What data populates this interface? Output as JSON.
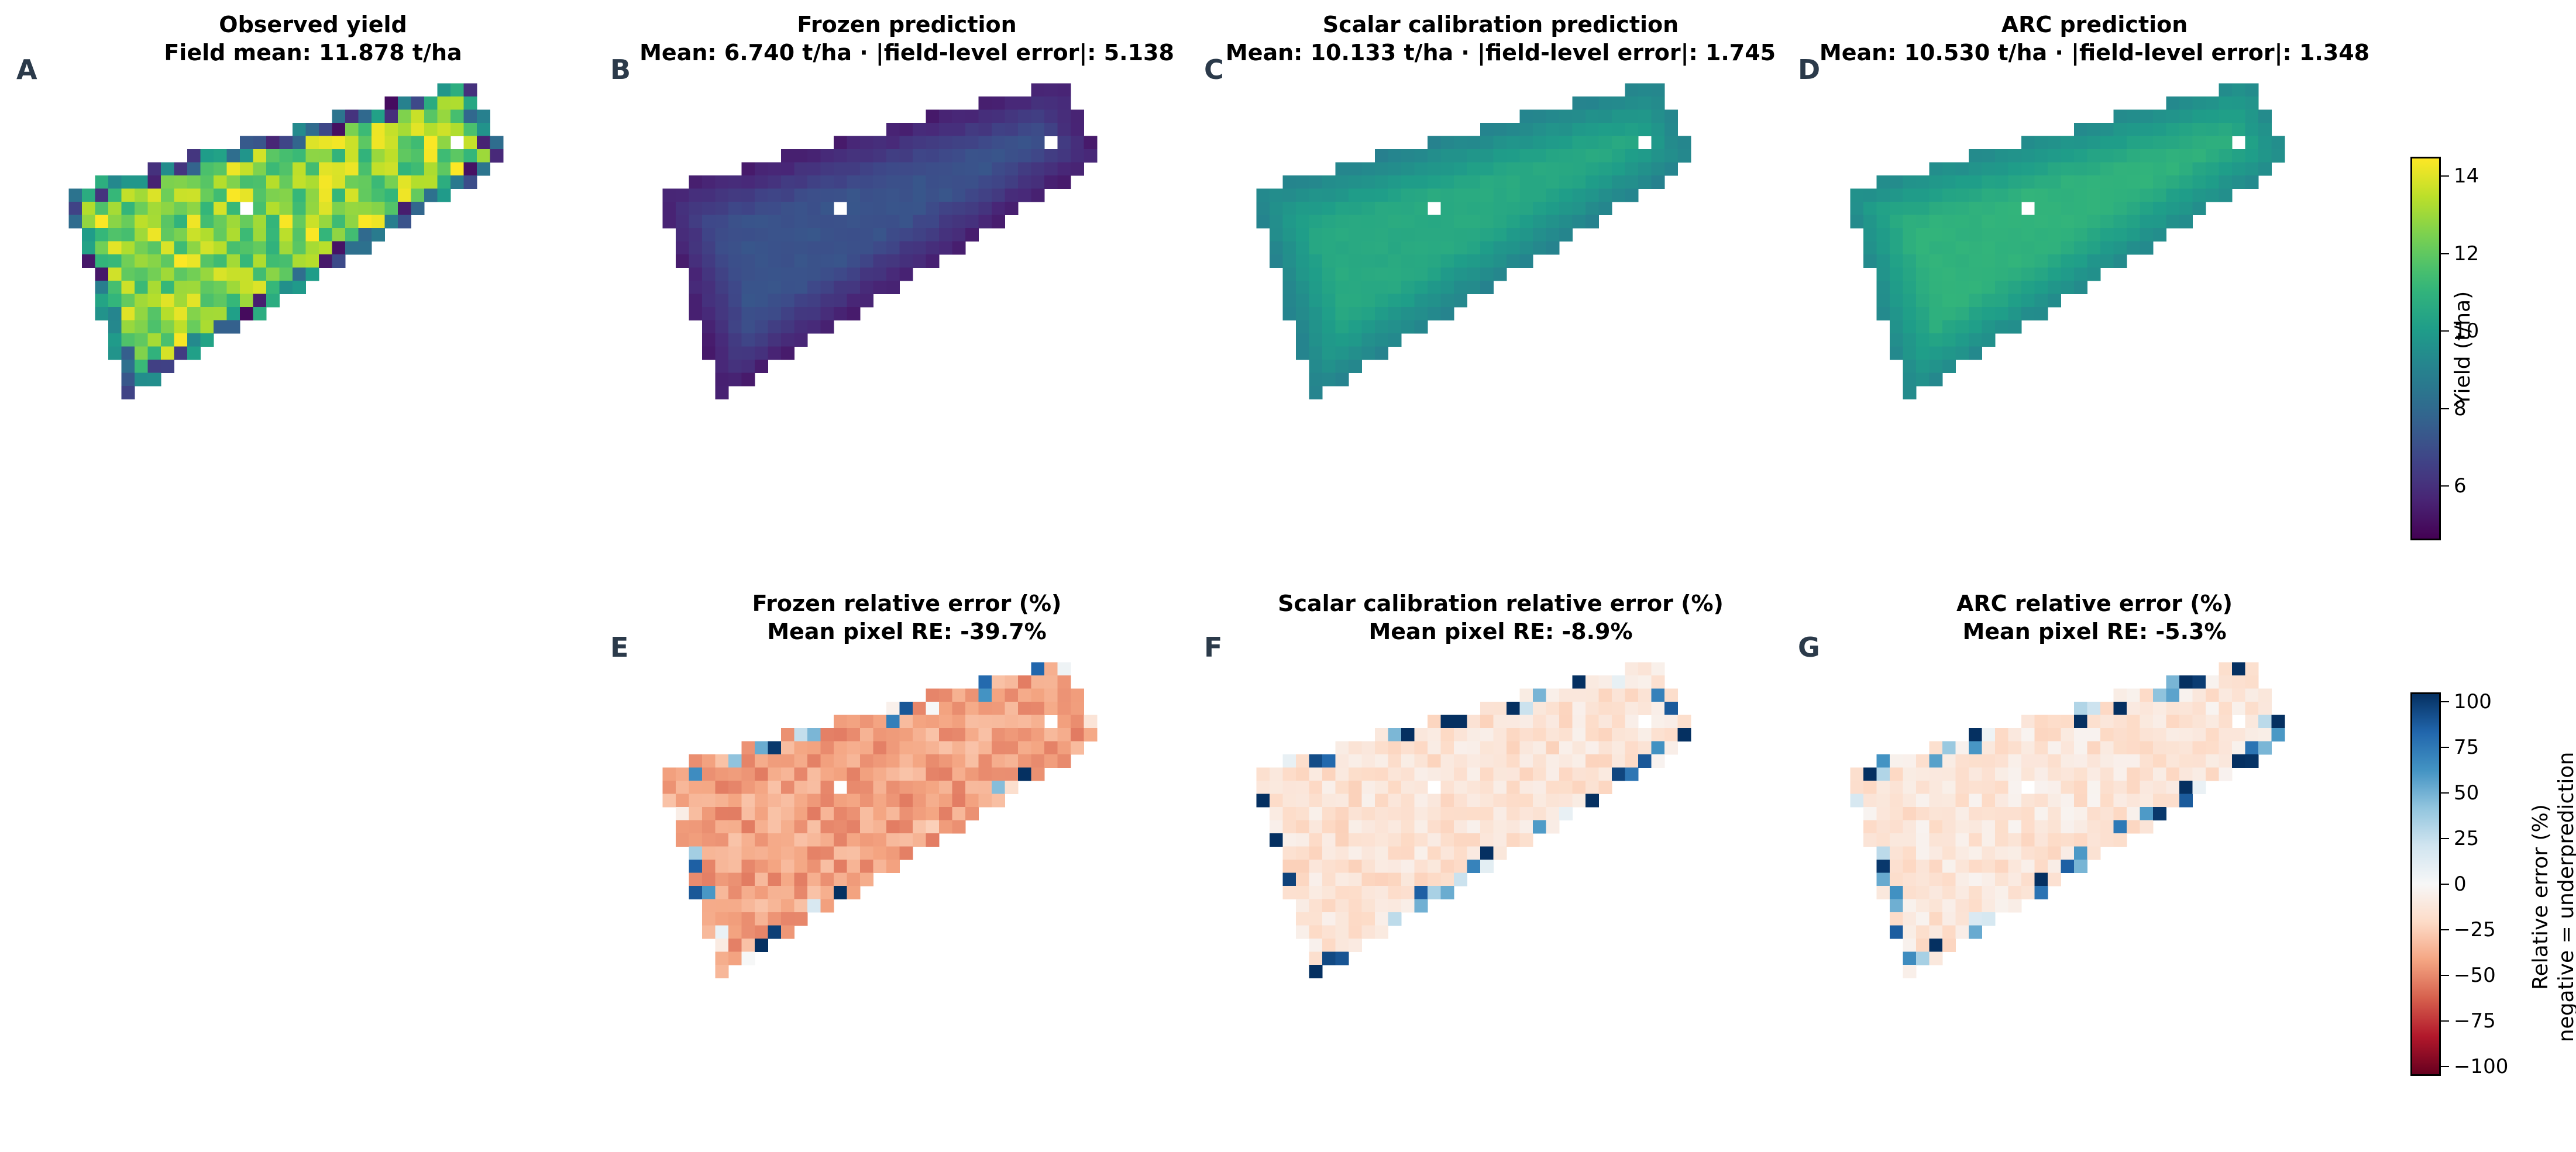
{
  "chart_data": [
    {
      "type": "heatmap",
      "panel_label": "A",
      "title": "Observed yield",
      "subtitle": "Field mean: 11.878 t/ha",
      "mean": 11.878,
      "unit": "t/ha",
      "colorbar": "yield"
    },
    {
      "type": "heatmap",
      "panel_label": "B",
      "title": "Frozen prediction",
      "subtitle": "Mean: 6.740 t/ha · |field-level error|: 5.138",
      "mean": 6.74,
      "field_level_error": 5.138,
      "unit": "t/ha",
      "colorbar": "yield"
    },
    {
      "type": "heatmap",
      "panel_label": "C",
      "title": "Scalar calibration prediction",
      "subtitle": "Mean: 10.133 t/ha · |field-level error|: 1.745",
      "mean": 10.133,
      "field_level_error": 1.745,
      "unit": "t/ha",
      "colorbar": "yield"
    },
    {
      "type": "heatmap",
      "panel_label": "D",
      "title": "ARC prediction",
      "subtitle": "Mean: 10.530 t/ha · |field-level error|: 1.348",
      "mean": 10.53,
      "field_level_error": 1.348,
      "unit": "t/ha",
      "colorbar": "yield"
    },
    {
      "type": "heatmap",
      "panel_label": "E",
      "title": "Frozen relative error (%)",
      "subtitle": "Mean pixel RE: -39.7%",
      "mean_pixel_re": -39.7,
      "unit": "%",
      "colorbar": "error"
    },
    {
      "type": "heatmap",
      "panel_label": "F",
      "title": "Scalar calibration relative error (%)",
      "subtitle": "Mean pixel RE: -8.9%",
      "mean_pixel_re": -8.9,
      "unit": "%",
      "colorbar": "error"
    },
    {
      "type": "heatmap",
      "panel_label": "G",
      "title": "ARC relative error (%)",
      "subtitle": "Mean pixel RE: -5.3%",
      "mean_pixel_re": -5.3,
      "unit": "%",
      "colorbar": "error"
    }
  ],
  "colorbars": {
    "yield": {
      "label": "Yield (t/ha)",
      "range": [
        4.6,
        14.5
      ],
      "ticks": [
        "6",
        "8",
        "10",
        "12",
        "14"
      ],
      "tick_values": [
        6,
        8,
        10,
        12,
        14
      ],
      "colormap": "viridis"
    },
    "error": {
      "label_line1": "Relative error (%)",
      "label_line2": "negative = underprediction",
      "range": [
        -105,
        105
      ],
      "ticks": [
        "100",
        "75",
        "50",
        "25",
        "0",
        "−25",
        "−50",
        "−75",
        "−100"
      ],
      "tick_values": [
        100,
        75,
        50,
        25,
        0,
        -25,
        -50,
        -75,
        -100
      ],
      "colormap": "RdBu"
    }
  }
}
